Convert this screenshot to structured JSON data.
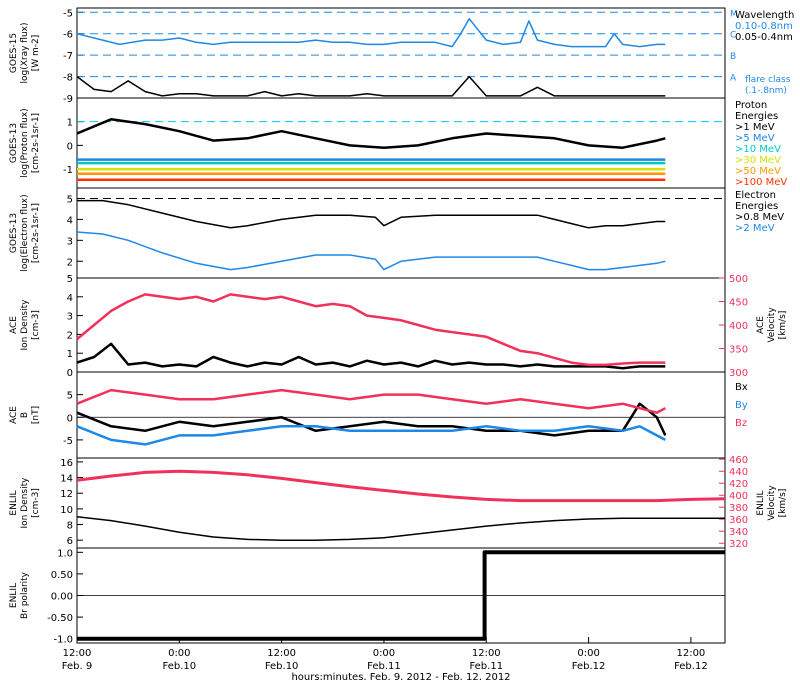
{
  "colors": {
    "black": "#000000",
    "blue": "#1e88e5",
    "dashblue": "#1e88e5",
    "cyan": "#00c8c8",
    "green": "#64c800",
    "yellow": "#dcdc00",
    "orange": "#ff9600",
    "red": "#ff3200",
    "pink": "#f0325a",
    "lightblue": "#00c8ff"
  },
  "xaxis": {
    "ticks": [
      {
        "t": 0,
        "time": "12:00",
        "date": "Feb. 9"
      },
      {
        "t": 12,
        "time": "0:00",
        "date": "Feb.10"
      },
      {
        "t": 24,
        "time": "12:00",
        "date": "Feb.10"
      },
      {
        "t": 36,
        "time": "0:00",
        "date": "Feb.11"
      },
      {
        "t": 48,
        "time": "12:00",
        "date": "Feb.11"
      },
      {
        "t": 60,
        "time": "0:00",
        "date": "Feb.12"
      },
      {
        "t": 72,
        "time": "12:00",
        "date": "Feb.12"
      }
    ],
    "label": "hours:minutes, Feb. 9, 2012 - Feb. 12, 2012",
    "range_hours": [
      0,
      76
    ]
  },
  "chart_data": [
    {
      "panel": "xray",
      "type": "line",
      "ylabel": [
        "GOES-15",
        "log(Xray flux)",
        "[W m-2]"
      ],
      "yticks": [
        -5,
        -6,
        -7,
        -8,
        -9
      ],
      "ylim": [
        -9,
        -4.8
      ],
      "flare_classes": [
        {
          "label": "M",
          "value": -5
        },
        {
          "label": "C",
          "value": -6
        },
        {
          "label": "B",
          "value": -7
        },
        {
          "label": "A",
          "value": -8
        }
      ],
      "legend": {
        "title": "Wavelength",
        "items": [
          {
            "label": "0.10-0.8nm",
            "color": "blue"
          },
          {
            "label": "0.05-0.4nm",
            "color": "black"
          }
        ],
        "note": [
          "flare class",
          "(.1-.8nm)"
        ]
      },
      "series": [
        {
          "name": "0.10-0.8nm",
          "color": "blue",
          "x": [
            0,
            3,
            5,
            8,
            10,
            12,
            14,
            16,
            18,
            20,
            22,
            24,
            26,
            28,
            30,
            32,
            34,
            36,
            38,
            40,
            42,
            44,
            45,
            46,
            48,
            50,
            52,
            53,
            54,
            56,
            58,
            60,
            62,
            63,
            64,
            66,
            68,
            69
          ],
          "y": [
            -6.0,
            -6.3,
            -6.5,
            -6.3,
            -6.3,
            -6.2,
            -6.4,
            -6.5,
            -6.4,
            -6.4,
            -6.4,
            -6.4,
            -6.4,
            -6.3,
            -6.4,
            -6.4,
            -6.5,
            -6.5,
            -6.4,
            -6.4,
            -6.4,
            -6.6,
            -6.0,
            -5.3,
            -6.3,
            -6.5,
            -6.4,
            -5.4,
            -6.3,
            -6.5,
            -6.6,
            -6.6,
            -6.6,
            -6.0,
            -6.5,
            -6.6,
            -6.5,
            -6.5
          ]
        },
        {
          "name": "0.05-0.4nm",
          "color": "black",
          "x": [
            0,
            2,
            4,
            6,
            8,
            10,
            12,
            14,
            16,
            18,
            20,
            22,
            24,
            26,
            28,
            30,
            32,
            34,
            36,
            38,
            40,
            42,
            44,
            46,
            48,
            50,
            52,
            54,
            56,
            58,
            60,
            62,
            64,
            66,
            68,
            69
          ],
          "y": [
            -8.0,
            -8.6,
            -8.7,
            -8.2,
            -8.7,
            -8.9,
            -8.8,
            -8.8,
            -8.9,
            -8.9,
            -8.9,
            -8.7,
            -8.9,
            -8.8,
            -8.9,
            -8.9,
            -8.9,
            -8.8,
            -8.9,
            -8.9,
            -8.9,
            -8.9,
            -8.9,
            -8.0,
            -8.9,
            -8.9,
            -8.9,
            -8.5,
            -8.9,
            -8.9,
            -8.9,
            -8.9,
            -8.9,
            -8.9,
            -8.9,
            -8.9
          ]
        }
      ]
    },
    {
      "panel": "proton",
      "type": "scatter",
      "ylabel": [
        "GOES-13",
        "log(Proton flux)",
        "[cm-2s-1sr-1]"
      ],
      "yticks": [
        1,
        0,
        -1
      ],
      "ylim": [
        -1.8,
        2.0
      ],
      "threshold": 1,
      "legend": {
        "title": [
          "Proton",
          "Energies"
        ],
        "items": [
          {
            "label": ">1 MeV",
            "color": "black"
          },
          {
            "label": ">5 MeV",
            "color": "blue"
          },
          {
            "label": ">10 MeV",
            "color": "cyan"
          },
          {
            "label": ">30 MeV",
            "color": "yellow"
          },
          {
            "label": ">50 MeV",
            "color": "orange"
          },
          {
            "label": ">100 MeV",
            "color": "red"
          }
        ]
      },
      "series": [
        {
          "name": ">1 MeV",
          "color": "black",
          "x": [
            0,
            4,
            8,
            12,
            16,
            20,
            24,
            28,
            32,
            36,
            40,
            44,
            48,
            52,
            56,
            60,
            64,
            68,
            69
          ],
          "y": [
            0.5,
            1.1,
            0.9,
            0.6,
            0.2,
            0.3,
            0.6,
            0.3,
            0.0,
            -0.1,
            0.0,
            0.3,
            0.5,
            0.4,
            0.3,
            0.0,
            -0.1,
            0.2,
            0.3
          ]
        },
        {
          "name": ">5 MeV",
          "color": "blue",
          "x": [
            0,
            69
          ],
          "y": [
            -0.6,
            -0.6
          ]
        },
        {
          "name": ">10 MeV",
          "color": "cyan",
          "x": [
            0,
            69
          ],
          "y": [
            -0.75,
            -0.75
          ]
        },
        {
          "name": ">30 MeV",
          "color": "yellow",
          "x": [
            0,
            69
          ],
          "y": [
            -1.0,
            -1.0
          ]
        },
        {
          "name": ">50 MeV",
          "color": "orange",
          "x": [
            0,
            69
          ],
          "y": [
            -1.2,
            -1.2
          ]
        },
        {
          "name": ">100 MeV",
          "color": "red",
          "x": [
            0,
            69
          ],
          "y": [
            -1.45,
            -1.45
          ]
        }
      ]
    },
    {
      "panel": "electron",
      "type": "line",
      "ylabel": [
        "GOES-13",
        "log(Electron flux)",
        "[cm-2s-1sr-1]"
      ],
      "yticks": [
        5,
        4,
        3,
        2
      ],
      "ylim": [
        1.2,
        5.5
      ],
      "threshold": 5,
      "legend": {
        "title": [
          "Electron",
          "Energies"
        ],
        "items": [
          {
            "label": ">0.8 MeV",
            "color": "black"
          },
          {
            "label": ">2 MeV",
            "color": "blue"
          }
        ]
      },
      "series": [
        {
          "name": ">0.8 MeV",
          "color": "black",
          "x": [
            0,
            3,
            6,
            10,
            14,
            18,
            20,
            24,
            28,
            32,
            35,
            36,
            38,
            42,
            46,
            50,
            54,
            56,
            58,
            60,
            62,
            64,
            66,
            68,
            69
          ],
          "y": [
            4.9,
            4.9,
            4.7,
            4.3,
            3.9,
            3.6,
            3.7,
            4.0,
            4.2,
            4.2,
            4.1,
            3.7,
            4.1,
            4.2,
            4.2,
            4.2,
            4.2,
            4.0,
            3.8,
            3.6,
            3.7,
            3.7,
            3.8,
            3.9,
            3.9
          ]
        },
        {
          "name": ">2 MeV",
          "color": "blue",
          "x": [
            0,
            3,
            6,
            10,
            14,
            18,
            20,
            24,
            28,
            32,
            35,
            36,
            38,
            42,
            46,
            50,
            54,
            56,
            58,
            60,
            62,
            64,
            66,
            68,
            69
          ],
          "y": [
            3.4,
            3.3,
            3.0,
            2.4,
            1.9,
            1.6,
            1.7,
            2.0,
            2.3,
            2.3,
            2.1,
            1.6,
            2.0,
            2.2,
            2.2,
            2.2,
            2.2,
            2.0,
            1.8,
            1.6,
            1.6,
            1.7,
            1.8,
            1.9,
            2.0
          ]
        }
      ]
    },
    {
      "panel": "ace_density",
      "type": "scatter",
      "ylabel": [
        "ACE",
        "Ion Density",
        "[cm-3]"
      ],
      "ylabel_right": [
        "ACE",
        "Velocity",
        "[km/s]"
      ],
      "yticks": [
        0,
        1,
        2,
        3,
        4,
        5
      ],
      "ylim": [
        0,
        5
      ],
      "yticks_right": [
        300,
        350,
        400,
        450,
        500
      ],
      "ylim_right": [
        300,
        500
      ],
      "series": [
        {
          "name": "Ion Density",
          "color": "black",
          "axis": "left",
          "x": [
            0,
            2,
            4,
            6,
            8,
            10,
            12,
            14,
            16,
            18,
            20,
            22,
            24,
            26,
            28,
            30,
            32,
            34,
            36,
            38,
            40,
            42,
            44,
            46,
            48,
            50,
            52,
            54,
            56,
            58,
            60,
            62,
            64,
            66,
            68,
            69
          ],
          "y": [
            0.5,
            0.8,
            1.5,
            0.4,
            0.5,
            0.3,
            0.4,
            0.3,
            0.8,
            0.5,
            0.3,
            0.5,
            0.4,
            0.8,
            0.4,
            0.5,
            0.3,
            0.6,
            0.4,
            0.5,
            0.3,
            0.6,
            0.4,
            0.5,
            0.4,
            0.4,
            0.3,
            0.4,
            0.3,
            0.3,
            0.3,
            0.3,
            0.2,
            0.3,
            0.3,
            0.3
          ]
        },
        {
          "name": "Velocity",
          "color": "pink",
          "axis": "right",
          "x": [
            0,
            2,
            4,
            6,
            8,
            10,
            12,
            14,
            16,
            18,
            20,
            22,
            24,
            26,
            28,
            30,
            32,
            34,
            36,
            38,
            40,
            42,
            44,
            46,
            48,
            50,
            52,
            54,
            56,
            58,
            60,
            62,
            64,
            66,
            68,
            69
          ],
          "y": [
            370,
            400,
            430,
            450,
            465,
            460,
            455,
            460,
            450,
            465,
            460,
            455,
            460,
            450,
            440,
            445,
            440,
            420,
            415,
            410,
            400,
            390,
            385,
            380,
            375,
            360,
            345,
            340,
            330,
            320,
            315,
            315,
            318,
            320,
            320,
            320
          ]
        }
      ]
    },
    {
      "panel": "ace_b",
      "type": "scatter",
      "ylabel": [
        "ACE",
        "B",
        "[nT]"
      ],
      "yticks": [
        -5,
        0,
        5
      ],
      "ylim": [
        -9,
        10
      ],
      "legend": {
        "items": [
          {
            "label": "Bx",
            "color": "black"
          },
          {
            "label": "By",
            "color": "blue"
          },
          {
            "label": "Bz",
            "color": "pink"
          }
        ]
      },
      "series": [
        {
          "name": "Bx",
          "color": "black",
          "x": [
            0,
            4,
            8,
            12,
            16,
            20,
            24,
            28,
            32,
            36,
            40,
            44,
            48,
            52,
            56,
            60,
            64,
            66,
            68,
            69
          ],
          "y": [
            1,
            -2,
            -3,
            -1,
            -2,
            -1,
            0,
            -3,
            -2,
            -1,
            -2,
            -2,
            -3,
            -3,
            -4,
            -3,
            -3,
            3,
            0,
            -4
          ]
        },
        {
          "name": "By",
          "color": "blue",
          "x": [
            0,
            4,
            8,
            12,
            16,
            20,
            24,
            28,
            32,
            36,
            40,
            44,
            48,
            52,
            56,
            60,
            64,
            66,
            68,
            69
          ],
          "y": [
            -2,
            -5,
            -6,
            -4,
            -4,
            -3,
            -2,
            -2,
            -3,
            -3,
            -3,
            -3,
            -2,
            -3,
            -3,
            -2,
            -3,
            -2,
            -4,
            -5
          ]
        },
        {
          "name": "Bz",
          "color": "pink",
          "x": [
            0,
            4,
            8,
            12,
            16,
            20,
            24,
            28,
            32,
            36,
            40,
            44,
            48,
            52,
            56,
            60,
            64,
            66,
            68,
            69
          ],
          "y": [
            3,
            6,
            5,
            4,
            4,
            5,
            6,
            5,
            4,
            5,
            5,
            4,
            3,
            4,
            3,
            2,
            3,
            2,
            1,
            2
          ]
        }
      ]
    },
    {
      "panel": "enlil_density",
      "type": "line",
      "ylabel": [
        "ENLIL",
        "Ion Density",
        "[cm-3]"
      ],
      "ylabel_right": [
        "ENLIL",
        "Velocity",
        "[km/s]"
      ],
      "yticks": [
        6,
        8,
        10,
        12,
        14,
        16
      ],
      "ylim": [
        5,
        16.5
      ],
      "yticks_right": [
        320,
        340,
        360,
        380,
        400,
        420,
        440,
        460
      ],
      "ylim_right": [
        312,
        462
      ],
      "series": [
        {
          "name": "Ion Density",
          "color": "black",
          "axis": "left",
          "x": [
            0,
            4,
            8,
            12,
            16,
            20,
            24,
            28,
            32,
            36,
            40,
            44,
            48,
            52,
            56,
            60,
            64,
            68,
            72,
            76
          ],
          "y": [
            9,
            8.5,
            7.8,
            7.0,
            6.4,
            6.1,
            6.0,
            6.0,
            6.1,
            6.3,
            6.8,
            7.3,
            7.8,
            8.2,
            8.5,
            8.7,
            8.8,
            8.8,
            8.8,
            8.8
          ]
        },
        {
          "name": "Velocity",
          "color": "pink",
          "axis": "right",
          "x": [
            0,
            4,
            8,
            12,
            16,
            20,
            24,
            28,
            32,
            36,
            40,
            44,
            48,
            52,
            56,
            60,
            64,
            68,
            72,
            76
          ],
          "y": [
            425,
            432,
            438,
            440,
            438,
            434,
            428,
            421,
            414,
            408,
            402,
            397,
            393,
            391,
            391,
            391,
            391,
            391,
            393,
            394
          ]
        }
      ]
    },
    {
      "panel": "enlil_polarity",
      "type": "line",
      "ylabel": [
        "ENLIL",
        "Br polarity"
      ],
      "yticks": [
        1.0,
        0.5,
        0.0,
        -0.5,
        -1.0
      ],
      "ytick_labels": [
        "1.0",
        "0.50",
        "0.00",
        "-0.50",
        "-1.0"
      ],
      "ylim": [
        -1.1,
        1.1
      ],
      "series": [
        {
          "name": "Br polarity",
          "color": "black",
          "x": [
            0,
            47.8,
            47.8,
            76
          ],
          "y": [
            -1,
            -1,
            1,
            1
          ]
        }
      ]
    }
  ]
}
